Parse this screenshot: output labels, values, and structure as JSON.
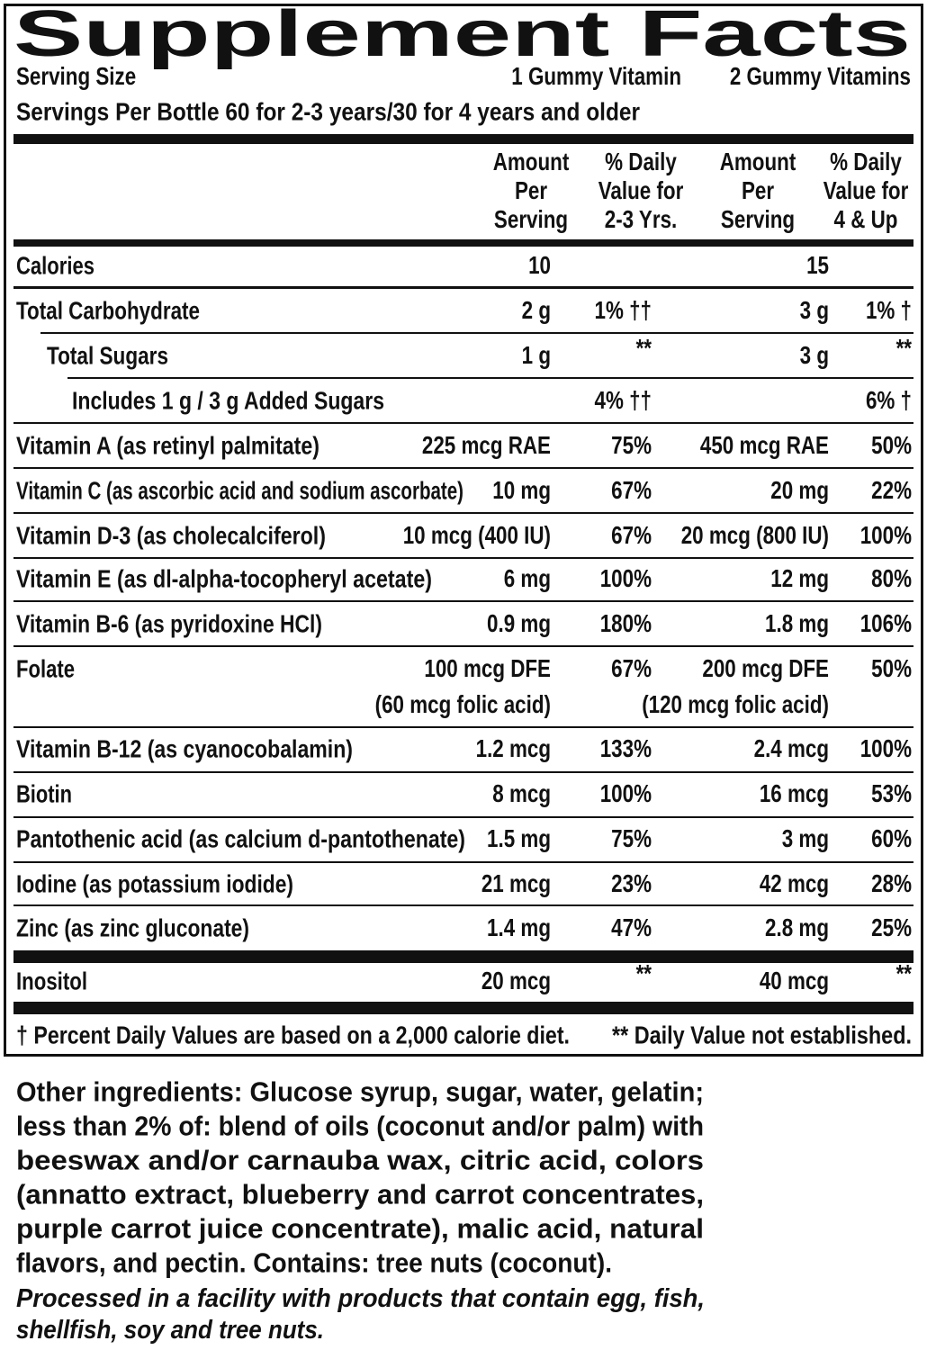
{
  "title": "Supplement Facts",
  "serving": {
    "label": "Serving Size",
    "col1": "1 Gummy Vitamin",
    "col2": "2 Gummy Vitamins"
  },
  "servings_per": "Servings Per Bottle 60 for 2-3 years/30 for 4 years and older",
  "headers": [
    [
      "Amount",
      "Per",
      "Serving"
    ],
    [
      "% Daily",
      "Value for",
      "2-3 Yrs."
    ],
    [
      "Amount",
      "Per",
      "Serving"
    ],
    [
      "% Daily",
      "Value for",
      "4 & Up"
    ]
  ],
  "rows": [
    {
      "name": "Calories",
      "amount1": "10",
      "amount2": "15"
    },
    {
      "name": "Total Carbohydrate",
      "amount1": "2 g",
      "dv1": "1% ††",
      "amount2": "3 g",
      "dv2": "1% †"
    },
    {
      "name": "Total Sugars",
      "amount1": "1 g",
      "dv1": "**",
      "amount2": "3 g",
      "dv2": "**"
    },
    {
      "name": "Includes 1 g / 3 g Added Sugars",
      "dv1": "4% ††",
      "dv2": "6% †"
    },
    {
      "name": "Vitamin A (as retinyl palmitate)",
      "amount1": "225 mcg RAE",
      "dv1": "75%",
      "amount2": "450 mcg RAE",
      "dv2": "50%"
    },
    {
      "name": "Vitamin C (as ascorbic acid and sodium ascorbate)",
      "amount1": "10 mg",
      "dv1": "67%",
      "amount2": "20 mg",
      "dv2": "22%"
    },
    {
      "name": "Vitamin D-3 (as cholecalciferol)",
      "amount1": "10 mcg (400 IU)",
      "dv1": "67%",
      "amount2": "20 mcg (800 IU)",
      "dv2": "100%"
    },
    {
      "name": "Vitamin E (as dl-alpha-tocopheryl acetate)",
      "amount1": "6 mg",
      "dv1": "100%",
      "amount2": "12 mg",
      "dv2": "80%"
    },
    {
      "name": "Vitamin B-6 (as pyridoxine HCl)",
      "amount1": "0.9 mg",
      "dv1": "180%",
      "amount2": "1.8 mg",
      "dv2": "106%"
    },
    {
      "name": "Folate",
      "amount1": "100 mcg DFE",
      "amount1_note": "(60 mcg folic acid)",
      "dv1": "67%",
      "amount2": "200 mcg DFE",
      "amount2_note": "(120 mcg folic acid)",
      "dv2": "50%"
    },
    {
      "name": "Vitamin B-12 (as cyanocobalamin)",
      "amount1": "1.2 mcg",
      "dv1": "133%",
      "amount2": "2.4 mcg",
      "dv2": "100%"
    },
    {
      "name": "Biotin",
      "amount1": "8 mcg",
      "dv1": "100%",
      "amount2": "16 mcg",
      "dv2": "53%"
    },
    {
      "name": "Pantothenic acid (as calcium d-pantothenate)",
      "amount1": "1.5 mg",
      "dv1": "75%",
      "amount2": "3 mg",
      "dv2": "60%"
    },
    {
      "name": "Iodine (as potassium iodide)",
      "amount1": "21 mcg",
      "dv1": "23%",
      "amount2": "42 mcg",
      "dv2": "28%"
    },
    {
      "name": "Zinc (as zinc gluconate)",
      "amount1": "1.4 mg",
      "dv1": "47%",
      "amount2": "2.8 mg",
      "dv2": "25%"
    },
    {
      "name": "Inositol",
      "amount1": "20 mcg",
      "dv1": "**",
      "amount2": "40 mcg",
      "dv2": "**"
    }
  ],
  "footnotes": [
    "† Percent Daily Values are based on a 2,000 calorie diet.",
    "** Daily Value not established."
  ],
  "other_ingredients": [
    "Other ingredients: Glucose syrup, sugar, water, gelatin;",
    "less than 2% of: blend of oils (coconut and/or palm) with",
    "beeswax and/or carnauba wax, citric acid, colors",
    "(annatto extract, blueberry and carrot concentrates,",
    "purple carrot juice concentrate), malic acid, natural",
    "flavors, and pectin. Contains: tree nuts (coconut)."
  ],
  "processed": [
    "Processed in a facility with products that contain egg, fish,",
    "shellfish, soy and tree nuts."
  ]
}
